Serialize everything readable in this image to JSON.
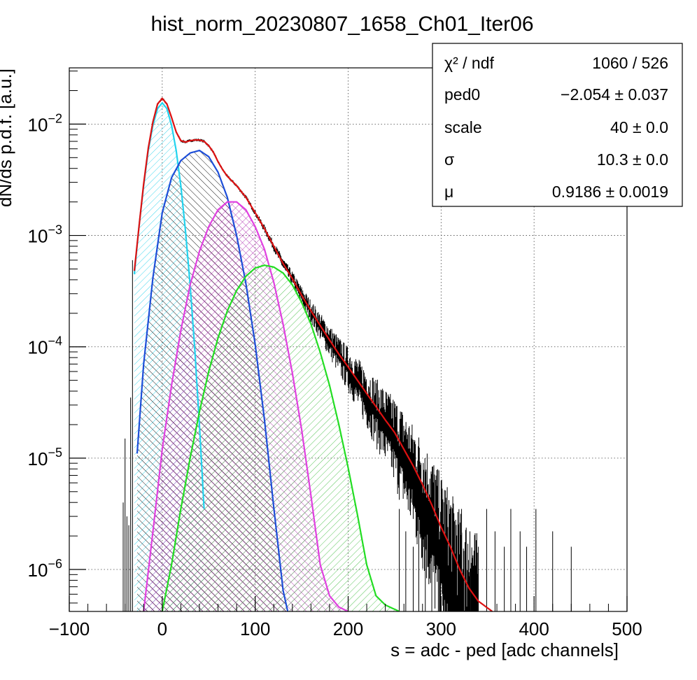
{
  "chart_data": {
    "type": "line",
    "title": "hist_norm_20230807_1658_Ch01_Iter06",
    "xlabel": "s = adc - ped [adc channels]",
    "ylabel": "dN/ds p.d.f. [a.u.]",
    "xlim": [
      -100,
      500
    ],
    "ylim": [
      4.2e-07,
      0.032
    ],
    "y_scale": "log",
    "grid": true,
    "x_ticks": [
      {
        "value": -100,
        "label": "−100"
      },
      {
        "value": 0,
        "label": "0"
      },
      {
        "value": 100,
        "label": "100"
      },
      {
        "value": 200,
        "label": "200"
      },
      {
        "value": 300,
        "label": "300"
      },
      {
        "value": 400,
        "label": "400"
      },
      {
        "value": 500,
        "label": "500"
      }
    ],
    "y_ticks": [
      {
        "value": 1e-06,
        "base": "10",
        "exp": "−6"
      },
      {
        "value": 1e-05,
        "base": "10",
        "exp": "−5"
      },
      {
        "value": 0.0001,
        "base": "10",
        "exp": "−4"
      },
      {
        "value": 0.001,
        "base": "10",
        "exp": "−3"
      },
      {
        "value": 0.01,
        "base": "10",
        "exp": "−2"
      }
    ],
    "stats_box": {
      "placement": "top-right",
      "rows": [
        {
          "label": "χ² / ndf",
          "value": "1060 / 526"
        },
        {
          "label": "ped0",
          "value": "−2.054 ± 0.037"
        },
        {
          "label": "scale",
          "value": "40 ± 0.0"
        },
        {
          "label": "σ",
          "value": "10.3 ± 0.0"
        },
        {
          "label": "μ",
          "value": "0.9186 ± 0.0019"
        }
      ]
    },
    "components": [
      {
        "color": "#22d3ee",
        "hatch": "forward",
        "range": [
          -30,
          45
        ],
        "points": [
          [
            -30,
            0.00045
          ],
          [
            -25,
            0.0012
          ],
          [
            -20,
            0.0028
          ],
          [
            -15,
            0.0058
          ],
          [
            -10,
            0.0098
          ],
          [
            -5,
            0.0138
          ],
          [
            0,
            0.0155
          ],
          [
            5,
            0.0138
          ],
          [
            10,
            0.0098
          ],
          [
            15,
            0.0058
          ],
          [
            20,
            0.0028
          ],
          [
            25,
            0.0011
          ],
          [
            30,
            0.00036
          ],
          [
            35,
            9.5e-05
          ],
          [
            40,
            2e-05
          ],
          [
            45,
            3.5e-06
          ]
        ]
      },
      {
        "color": "#1d4ed8",
        "hatch": "back",
        "range": [
          -27,
          135
        ],
        "points": [
          [
            -27,
            1.1e-05
          ],
          [
            -20,
            7e-05
          ],
          [
            -10,
            0.00042
          ],
          [
            0,
            0.0016
          ],
          [
            10,
            0.0033
          ],
          [
            20,
            0.0047
          ],
          [
            30,
            0.0055
          ],
          [
            40,
            0.0058
          ],
          [
            50,
            0.0051
          ],
          [
            60,
            0.0037
          ],
          [
            70,
            0.0022
          ],
          [
            80,
            0.001
          ],
          [
            90,
            0.00037
          ],
          [
            100,
            0.000105
          ],
          [
            110,
            2.2e-05
          ],
          [
            120,
            3.6e-06
          ],
          [
            130,
            6.5e-07
          ],
          [
            135,
            4.2e-07
          ]
        ]
      },
      {
        "color": "#e040e0",
        "hatch": "cross",
        "range": [
          -20,
          200
        ],
        "points": [
          [
            -20,
            4.2e-07
          ],
          [
            -10,
            2.2e-06
          ],
          [
            0,
            1.2e-05
          ],
          [
            10,
            4.5e-05
          ],
          [
            20,
            0.00014
          ],
          [
            30,
            0.00036
          ],
          [
            40,
            0.00072
          ],
          [
            50,
            0.0012
          ],
          [
            60,
            0.0017
          ],
          [
            70,
            0.002
          ],
          [
            80,
            0.002
          ],
          [
            90,
            0.0017
          ],
          [
            100,
            0.0012
          ],
          [
            110,
            0.00075
          ],
          [
            120,
            0.00038
          ],
          [
            130,
            0.00016
          ],
          [
            140,
            5.8e-05
          ],
          [
            150,
            1.8e-05
          ],
          [
            160,
            4.6e-06
          ],
          [
            170,
            1.1e-06
          ],
          [
            180,
            5.8e-07
          ],
          [
            190,
            4.6e-07
          ],
          [
            200,
            4.2e-07
          ]
        ]
      },
      {
        "color": "#22dd22",
        "hatch": "forward-light",
        "range": [
          0,
          255
        ],
        "points": [
          [
            0,
            4.2e-07
          ],
          [
            10,
            1.1e-06
          ],
          [
            20,
            3.5e-06
          ],
          [
            30,
            1e-05
          ],
          [
            40,
            2.6e-05
          ],
          [
            50,
            6e-05
          ],
          [
            60,
            0.00012
          ],
          [
            70,
            0.00021
          ],
          [
            80,
            0.00032
          ],
          [
            90,
            0.00043
          ],
          [
            100,
            0.00051
          ],
          [
            110,
            0.00054
          ],
          [
            120,
            0.00052
          ],
          [
            130,
            0.00046
          ],
          [
            140,
            0.00036
          ],
          [
            150,
            0.00025
          ],
          [
            160,
            0.00016
          ],
          [
            170,
            8.9e-05
          ],
          [
            180,
            4.5e-05
          ],
          [
            190,
            2e-05
          ],
          [
            200,
            8.2e-06
          ],
          [
            210,
            3.1e-06
          ],
          [
            220,
            1.1e-06
          ],
          [
            230,
            5.8e-07
          ],
          [
            240,
            4.8e-07
          ],
          [
            255,
            4.2e-07
          ]
        ]
      }
    ],
    "fit": {
      "color": "#dd1111",
      "range": [
        -30,
        355
      ],
      "points": [
        [
          -30,
          0.00048
        ],
        [
          -25,
          0.0012
        ],
        [
          -20,
          0.0029
        ],
        [
          -15,
          0.0061
        ],
        [
          -10,
          0.0105
        ],
        [
          -5,
          0.0152
        ],
        [
          0,
          0.017
        ],
        [
          5,
          0.0152
        ],
        [
          10,
          0.0115
        ],
        [
          15,
          0.0085
        ],
        [
          20,
          0.0071
        ],
        [
          25,
          0.0069
        ],
        [
          30,
          0.0071
        ],
        [
          35,
          0.0072
        ],
        [
          40,
          0.0072
        ],
        [
          45,
          0.007
        ],
        [
          50,
          0.0064
        ],
        [
          55,
          0.0056
        ],
        [
          60,
          0.0046
        ],
        [
          65,
          0.0039
        ],
        [
          70,
          0.0034
        ],
        [
          80,
          0.0028
        ],
        [
          90,
          0.0022
        ],
        [
          100,
          0.0016
        ],
        [
          110,
          0.00115
        ],
        [
          120,
          0.0008
        ],
        [
          130,
          0.00056
        ],
        [
          140,
          0.00041
        ],
        [
          150,
          0.00029
        ],
        [
          160,
          0.00021
        ],
        [
          170,
          0.000155
        ],
        [
          180,
          0.000115
        ],
        [
          190,
          8.6e-05
        ],
        [
          200,
          6.6e-05
        ],
        [
          210,
          5e-05
        ],
        [
          220,
          3.8e-05
        ],
        [
          230,
          2.9e-05
        ],
        [
          240,
          2.2e-05
        ],
        [
          250,
          1.7e-05
        ],
        [
          260,
          1.2e-05
        ],
        [
          270,
          8.5e-06
        ],
        [
          280,
          5.8e-06
        ],
        [
          290,
          3.8e-06
        ],
        [
          300,
          2.4e-06
        ],
        [
          310,
          1.6e-06
        ],
        [
          320,
          1e-06
        ],
        [
          330,
          6.8e-07
        ],
        [
          340,
          5.2e-07
        ],
        [
          355,
          4.2e-07
        ]
      ]
    },
    "data_note_series": "black histogram with error bars following the fit"
  }
}
